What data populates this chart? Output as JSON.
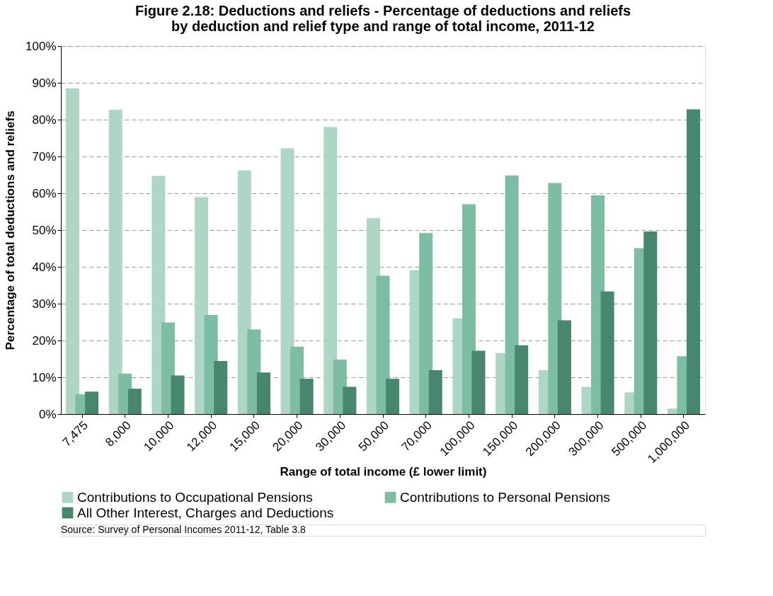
{
  "chart_data": {
    "type": "bar",
    "title": [
      "Figure 2.18: Deductions and reliefs - Percentage of deductions and reliefs",
      "by deduction and relief type and range of total income, 2011-12"
    ],
    "xlabel": "Range of total income (£ lower limit)",
    "ylabel": "Percentage of total deductions and reliefs",
    "categories": [
      "7,475",
      "8,000",
      "10,000",
      "12,000",
      "15,000",
      "20,000",
      "30,000",
      "50,000",
      "70,000",
      "100,000",
      "150,000",
      "200,000",
      "300,000",
      "500,000",
      "1,000,000"
    ],
    "series": [
      {
        "name": "Contributions to Occupational Pensions",
        "color": "#aed6c5",
        "values": [
          88.5,
          82.7,
          64.7,
          59.0,
          66.2,
          72.2,
          78.0,
          53.2,
          39.1,
          26.0,
          16.6,
          11.9,
          7.4,
          5.9,
          1.5
        ]
      },
      {
        "name": "Contributions to Personal Pensions",
        "color": "#7dbda3",
        "values": [
          5.4,
          11.0,
          24.9,
          26.9,
          23.0,
          18.3,
          14.8,
          37.6,
          49.2,
          57.0,
          64.8,
          62.8,
          59.4,
          45.1,
          15.7
        ]
      },
      {
        "name": "All Other Interest, Charges and Deductions",
        "color": "#46876d",
        "values": [
          6.1,
          6.9,
          10.5,
          14.4,
          11.3,
          9.6,
          7.4,
          9.6,
          11.9,
          17.2,
          18.7,
          25.5,
          33.3,
          49.6,
          82.8
        ]
      }
    ],
    "ylim": [
      0,
      100
    ],
    "yticks": [
      {
        "value": 0,
        "label": "0%"
      },
      {
        "value": 10,
        "label": "10%"
      },
      {
        "value": 20,
        "label": "20%"
      },
      {
        "value": 30,
        "label": "30%"
      },
      {
        "value": 40,
        "label": "40%"
      },
      {
        "value": 50,
        "label": "50%"
      },
      {
        "value": 60,
        "label": "60%"
      },
      {
        "value": 70,
        "label": "70%"
      },
      {
        "value": 80,
        "label": "80%"
      },
      {
        "value": 90,
        "label": "90%"
      },
      {
        "value": 100,
        "label": "100%"
      }
    ],
    "grid": "y",
    "legend": "bottom",
    "annotations": [
      "Source: Survey of Personal Incomes 2011-12, Table 3.8"
    ]
  }
}
